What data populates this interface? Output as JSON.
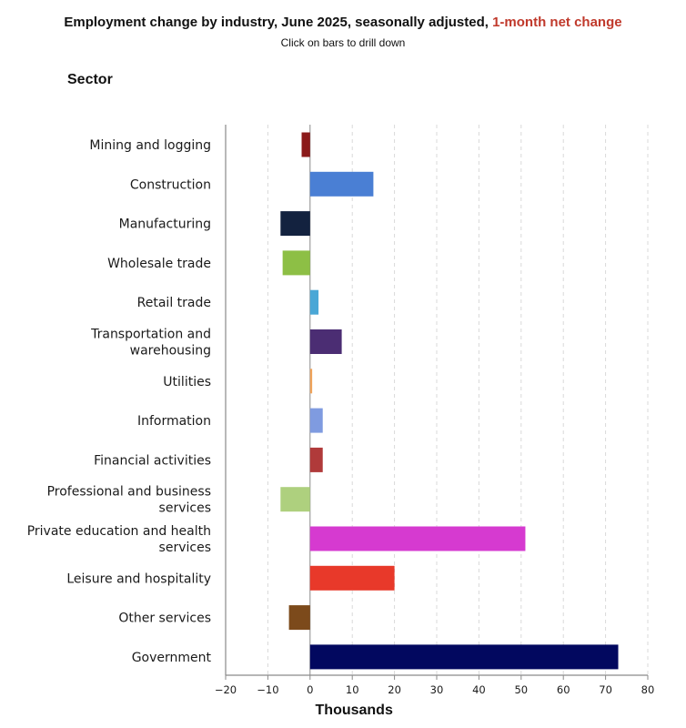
{
  "header": {
    "title_main": "Employment change by industry, June 2025, seasonally adjusted,",
    "title_accent": "1-month net change",
    "subtitle": "Click on bars to drill down",
    "sector_heading": "Sector"
  },
  "colors": {
    "accent": "#c0392b",
    "axis": "#8a8a8a",
    "grid": "#d9d9d9"
  },
  "chart_data": {
    "type": "bar",
    "orientation": "horizontal",
    "title": "Employment change by industry, June 2025, seasonally adjusted, 1-month net change",
    "xlabel": "Thousands",
    "ylabel": "Sector",
    "xlim": [
      -20,
      80
    ],
    "xticks": [
      -20,
      -10,
      0,
      10,
      20,
      30,
      40,
      50,
      60,
      70,
      80
    ],
    "grid": "vertical dashed",
    "categories": [
      [
        "Mining and logging"
      ],
      [
        "Construction"
      ],
      [
        "Manufacturing"
      ],
      [
        "Wholesale trade"
      ],
      [
        "Retail trade"
      ],
      [
        "Transportation and",
        "warehousing"
      ],
      [
        "Utilities"
      ],
      [
        "Information"
      ],
      [
        "Financial activities"
      ],
      [
        "Professional and business",
        "services"
      ],
      [
        "Private education and health",
        "services"
      ],
      [
        "Leisure and hospitality"
      ],
      [
        "Other services"
      ],
      [
        "Government"
      ]
    ],
    "values": [
      -2,
      15,
      -7,
      -6.5,
      2,
      7.5,
      0.5,
      3,
      3,
      -7,
      51,
      20,
      -5,
      73
    ],
    "colors": [
      "#8b1a1a",
      "#4a7fd4",
      "#13223f",
      "#8dbf45",
      "#4aa7d6",
      "#4b2d73",
      "#f0a35a",
      "#7f9be0",
      "#b03a3a",
      "#aed07e",
      "#d63ad0",
      "#e8392a",
      "#7c4a1b",
      "#02085f"
    ]
  }
}
